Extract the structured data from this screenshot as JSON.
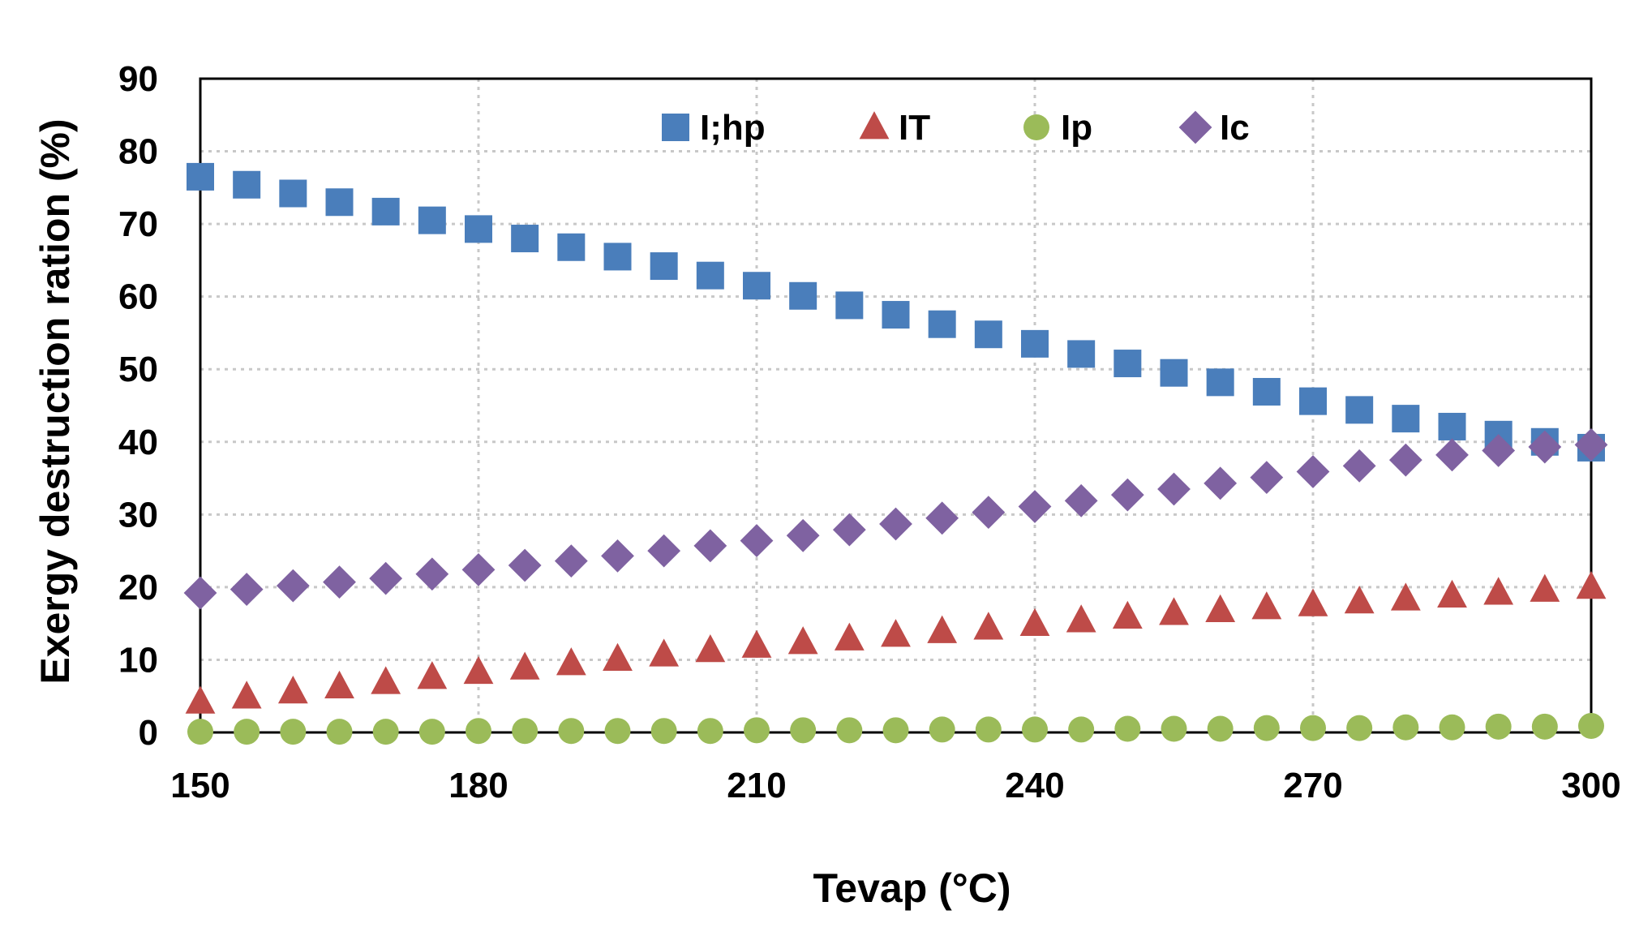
{
  "chart_data": {
    "type": "scatter",
    "title": "",
    "xlabel": "Tevap (°C)",
    "ylabel": "Exergy destruction ration (%)",
    "xlim": [
      150,
      300
    ],
    "ylim": [
      0,
      90
    ],
    "xticks": [
      150,
      180,
      210,
      240,
      270,
      300
    ],
    "yticks": [
      0,
      10,
      20,
      30,
      40,
      50,
      60,
      70,
      80,
      90
    ],
    "grid": true,
    "legend_position": "top",
    "x": [
      150,
      155,
      160,
      165,
      170,
      175,
      180,
      185,
      190,
      195,
      200,
      205,
      210,
      215,
      220,
      225,
      230,
      235,
      240,
      245,
      250,
      255,
      260,
      265,
      270,
      275,
      280,
      285,
      290,
      295,
      300
    ],
    "series": [
      {
        "name": "I;hp",
        "marker": "square",
        "color": "#4a7ebb",
        "values": [
          76.5,
          75.4,
          74.2,
          73.0,
          71.7,
          70.5,
          69.3,
          68.0,
          66.8,
          65.5,
          64.2,
          62.9,
          61.5,
          60.1,
          58.8,
          57.5,
          56.2,
          54.8,
          53.5,
          52.1,
          50.8,
          49.5,
          48.2,
          46.9,
          45.6,
          44.4,
          43.2,
          42.1,
          41.0,
          40.0,
          39.2
        ]
      },
      {
        "name": "IT",
        "marker": "triangle",
        "color": "#be4b48",
        "values": [
          4.2,
          4.9,
          5.6,
          6.3,
          6.9,
          7.6,
          8.3,
          8.9,
          9.5,
          10.1,
          10.7,
          11.3,
          11.9,
          12.4,
          12.9,
          13.4,
          13.9,
          14.4,
          14.9,
          15.4,
          15.9,
          16.4,
          16.8,
          17.2,
          17.6,
          18.0,
          18.4,
          18.8,
          19.2,
          19.6,
          20.0
        ]
      },
      {
        "name": "Ip",
        "marker": "circle",
        "color": "#9bbb59",
        "values": [
          0.1,
          0.1,
          0.1,
          0.1,
          0.1,
          0.1,
          0.2,
          0.2,
          0.2,
          0.2,
          0.2,
          0.2,
          0.3,
          0.3,
          0.3,
          0.3,
          0.4,
          0.4,
          0.4,
          0.4,
          0.5,
          0.5,
          0.5,
          0.6,
          0.6,
          0.6,
          0.7,
          0.7,
          0.8,
          0.8,
          0.9
        ]
      },
      {
        "name": "Ic",
        "marker": "diamond",
        "color": "#7f62a1",
        "values": [
          19.2,
          19.7,
          20.2,
          20.7,
          21.2,
          21.8,
          22.4,
          23.0,
          23.6,
          24.3,
          25.0,
          25.7,
          26.4,
          27.1,
          27.9,
          28.7,
          29.5,
          30.3,
          31.1,
          31.9,
          32.7,
          33.5,
          34.3,
          35.1,
          35.9,
          36.7,
          37.5,
          38.2,
          38.8,
          39.3,
          39.6
        ]
      }
    ]
  }
}
